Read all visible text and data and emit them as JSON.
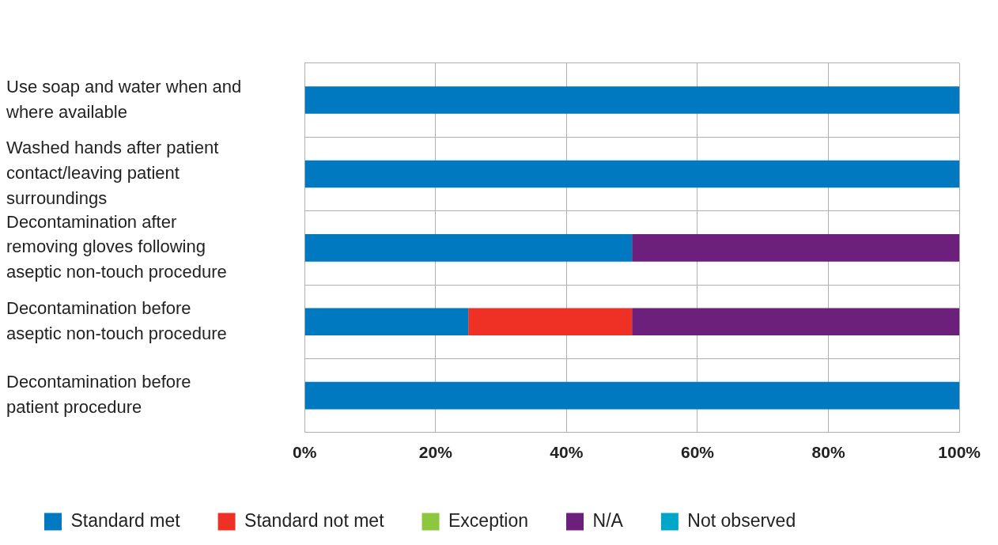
{
  "chart_data": {
    "type": "bar",
    "orientation": "horizontal",
    "stacked": true,
    "categories": [
      "Use soap and water when and where available",
      "Washed hands after patient contact/leaving patient surroundings",
      "Decontamination after removing gloves following aseptic non-touch procedure",
      "Decontamination before aseptic non-touch procedure",
      "Decontamination before patient procedure"
    ],
    "series": [
      {
        "name": "Standard met",
        "color": "#0079c1",
        "values": [
          100,
          100,
          50,
          25,
          100
        ]
      },
      {
        "name": "Standard not met",
        "color": "#ee3124",
        "values": [
          0,
          0,
          0,
          25,
          0
        ]
      },
      {
        "name": "Exception",
        "color": "#8dc63f",
        "values": [
          0,
          0,
          0,
          0,
          0
        ]
      },
      {
        "name": "N/A",
        "color": "#6d1f7c",
        "values": [
          0,
          0,
          50,
          50,
          0
        ]
      },
      {
        "name": "Not observed",
        "color": "#00a6c8",
        "values": [
          0,
          0,
          0,
          0,
          0
        ]
      }
    ],
    "xlim": [
      0,
      100
    ],
    "xticks": [
      {
        "value": 0,
        "label": "0%"
      },
      {
        "value": 20,
        "label": "20%"
      },
      {
        "value": 40,
        "label": "40%"
      },
      {
        "value": 60,
        "label": "60%"
      },
      {
        "value": 80,
        "label": "80%"
      },
      {
        "value": 100,
        "label": "100%"
      }
    ],
    "grid": true,
    "legend": "bottom"
  }
}
